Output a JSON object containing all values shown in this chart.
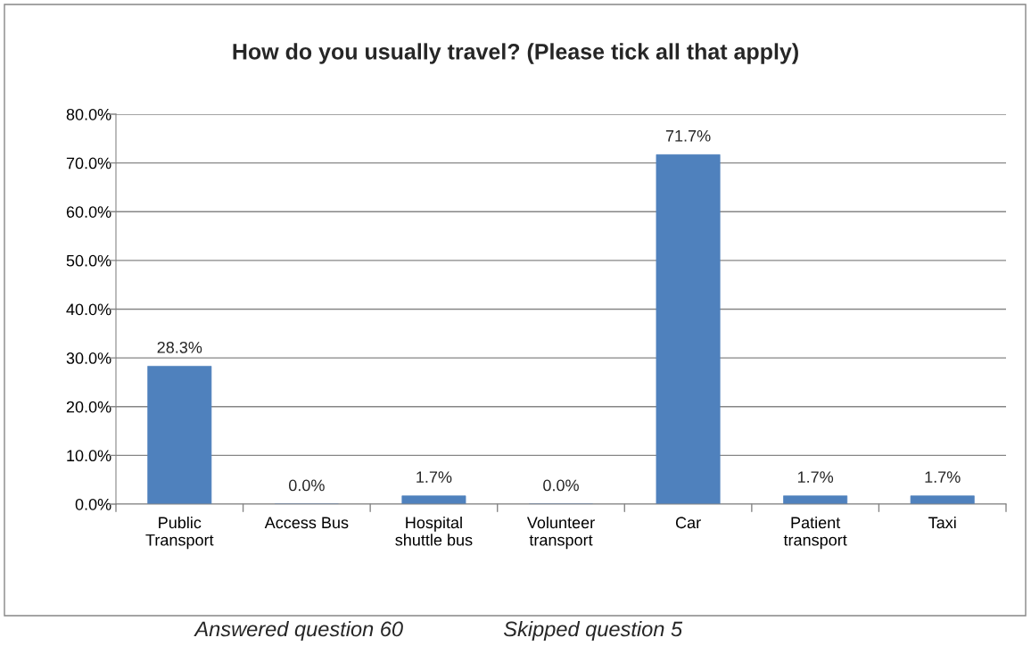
{
  "chart_data": {
    "type": "bar",
    "title": "How do you usually travel? (Please tick all that apply)",
    "categories": [
      "Public\nTransport",
      "Access Bus",
      "Hospital\nshuttle bus",
      "Volunteer\ntransport",
      "Car",
      "Patient\ntransport",
      "Taxi"
    ],
    "values": [
      28.3,
      0.0,
      1.7,
      0.0,
      71.7,
      1.7,
      1.7
    ],
    "value_labels": [
      "28.3%",
      "0.0%",
      "1.7%",
      "0.0%",
      "71.7%",
      "1.7%",
      "1.7%"
    ],
    "color": "#4f81bd",
    "ylim": [
      0,
      80
    ],
    "yticks": [
      {
        "value": 0,
        "label": "0.0%"
      },
      {
        "value": 10,
        "label": "10.0%"
      },
      {
        "value": 20,
        "label": "20.0%"
      },
      {
        "value": 30,
        "label": "30.0%"
      },
      {
        "value": 40,
        "label": "40.0%"
      },
      {
        "value": 50,
        "label": "50.0%"
      },
      {
        "value": 60,
        "label": "60.0%"
      },
      {
        "value": 70,
        "label": "70.0%"
      },
      {
        "value": 80,
        "label": "80.0%"
      }
    ],
    "grid": "y",
    "legend": false,
    "annotations": [
      "Answered question 60",
      "Skipped question 5"
    ]
  }
}
